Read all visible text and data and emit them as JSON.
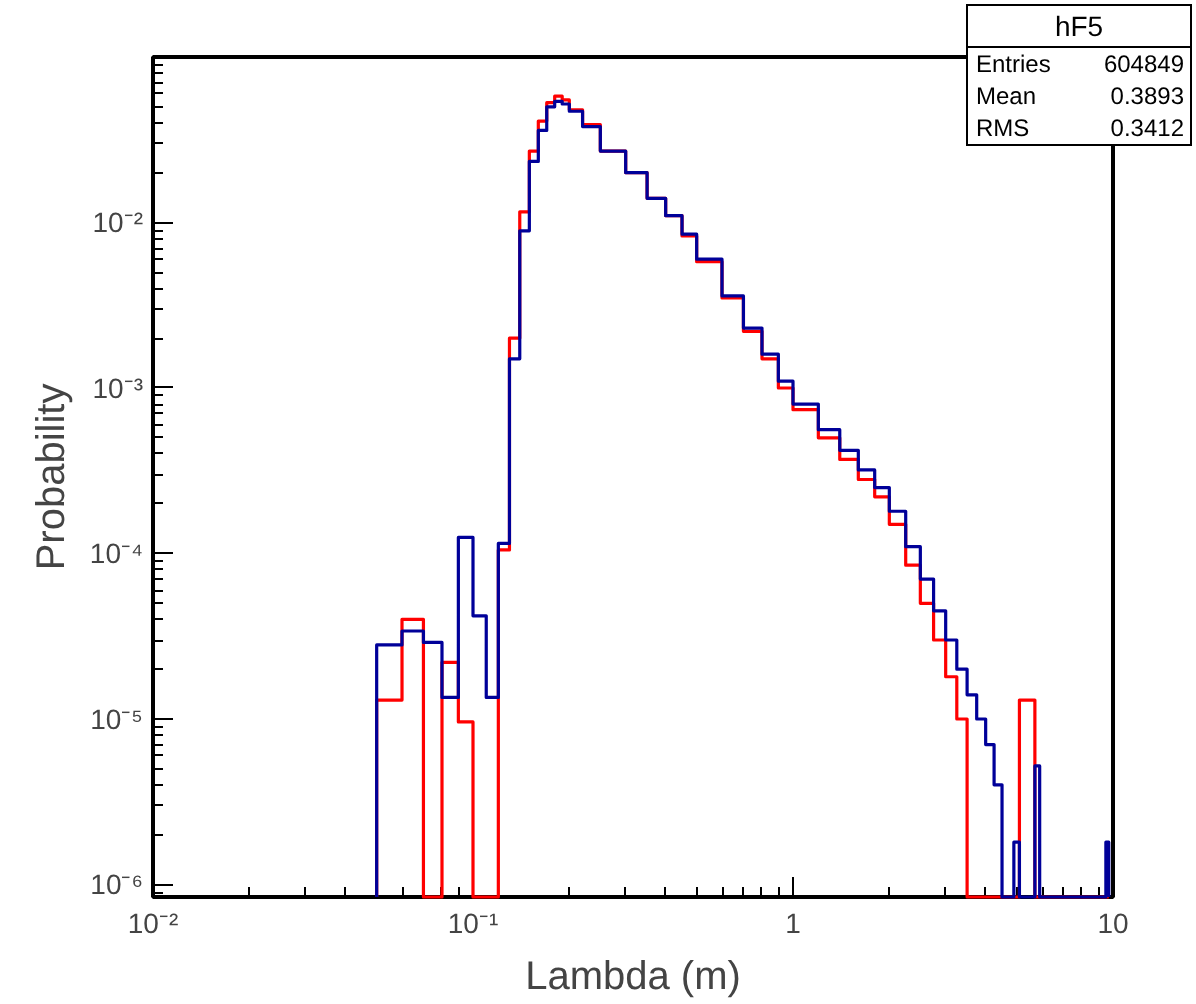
{
  "chart_data": {
    "type": "histogram",
    "xlabel": "Lambda (m)",
    "ylabel": "Probability",
    "log": "xy",
    "grid": false,
    "xlim": [
      0.01,
      10
    ],
    "ylim": [
      8.4e-07,
      0.1
    ],
    "xticks": [
      {
        "value": 0.01,
        "label": "10⁻²"
      },
      {
        "value": 0.1,
        "label": "10⁻¹"
      },
      1,
      10
    ],
    "yticks": [
      {
        "value": 1e-06,
        "label": "10⁻⁶"
      },
      {
        "value": 1e-05,
        "label": "10⁻⁵"
      },
      {
        "value": 0.0001,
        "label": "10⁻⁴"
      },
      {
        "value": 0.001,
        "label": "10⁻³"
      },
      {
        "value": 0.01,
        "label": "10⁻²"
      }
    ],
    "bins": [
      0.05,
      0.06,
      0.07,
      0.08,
      0.09,
      0.1,
      0.11,
      0.12,
      0.13,
      0.14,
      0.15,
      0.16,
      0.17,
      0.18,
      0.19,
      0.2,
      0.22,
      0.25,
      0.3,
      0.35,
      0.4,
      0.45,
      0.5,
      0.6,
      0.7,
      0.8,
      0.9,
      1.0,
      1.2,
      1.4,
      1.6,
      1.8,
      2.0,
      2.25,
      2.5,
      2.75,
      3.0,
      3.25,
      3.5,
      3.75,
      4.0,
      4.25,
      4.5,
      4.9,
      5.1,
      5.7,
      5.9,
      9.5,
      9.7
    ],
    "series": [
      {
        "color": "#ff0000",
        "values": [
          1.3e-05,
          4e-05,
          null,
          2.2e-05,
          9.6e-06,
          null,
          null,
          0.000105,
          0.002,
          0.0116,
          0.027,
          0.041,
          0.053,
          0.058,
          0.055,
          0.048,
          0.039,
          0.027,
          0.02,
          0.014,
          0.011,
          0.0083,
          0.0058,
          0.0035,
          0.0022,
          0.0015,
          0.001,
          0.00074,
          0.0005,
          0.00037,
          0.00028,
          0.00022,
          0.00015,
          8.5e-05,
          5e-05,
          3e-05,
          1.8e-05,
          1e-05,
          null,
          null,
          null,
          null,
          null,
          null,
          1.3e-05,
          null,
          null,
          null
        ]
      },
      {
        "color": "#000099",
        "values": [
          2.8e-05,
          3.4e-05,
          2.9e-05,
          1.35e-05,
          0.000125,
          4.2e-05,
          1.35e-05,
          0.000115,
          0.0015,
          0.0089,
          0.0234,
          0.036,
          0.05,
          0.054,
          0.052,
          0.047,
          0.038,
          0.027,
          0.02,
          0.014,
          0.011,
          0.0085,
          0.006,
          0.0036,
          0.0023,
          0.0016,
          0.0011,
          0.0008,
          0.00056,
          0.00042,
          0.00032,
          0.00025,
          0.00018,
          0.00011,
          7e-05,
          4.5e-05,
          3e-05,
          2e-05,
          1.4e-05,
          1e-05,
          7e-06,
          4e-06,
          null,
          1.8e-06,
          null,
          5.2e-06,
          null,
          1.8e-06
        ]
      }
    ],
    "annotations": [
      "hF5",
      "Entries 604849",
      "Mean 0.3893",
      "RMS 0.3412"
    ]
  }
}
